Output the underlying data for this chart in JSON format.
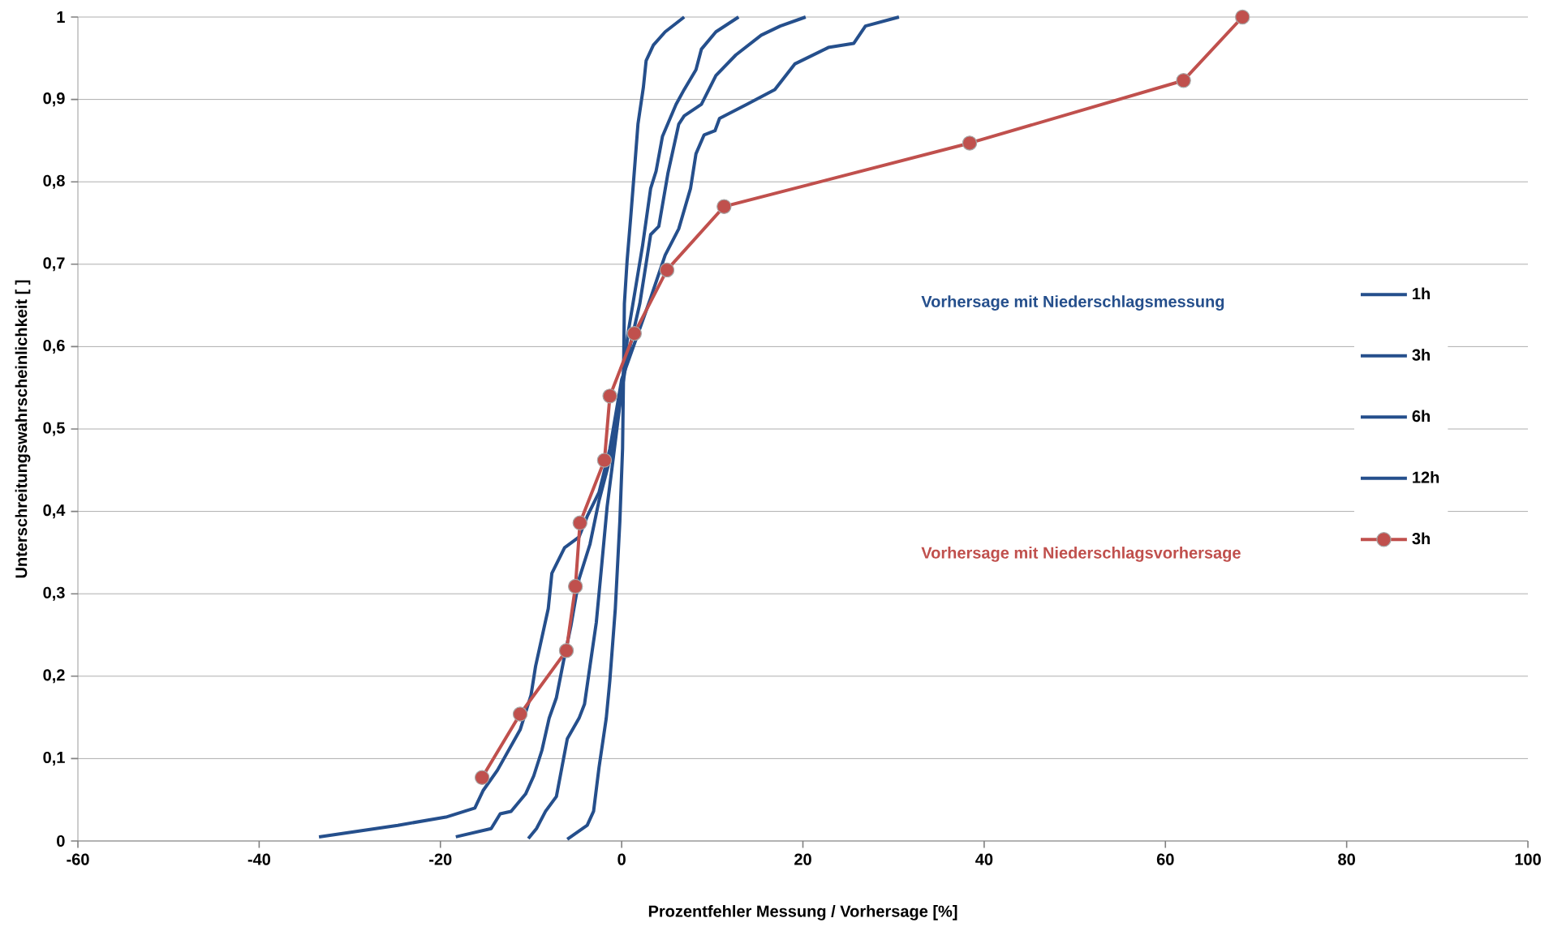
{
  "chart_data": {
    "type": "line",
    "xlabel": "Prozentfehler Messung / Vorhersage [%]",
    "ylabel": "Unterschreitungswahrscheinlichkeit [ ]",
    "annotations": [
      "Vorhersage mit Niederschlagsmessung",
      "Vorhersage mit Niederschlagsvorhersage"
    ],
    "xlim": [
      -60,
      100
    ],
    "xticks": [
      -60,
      -40,
      -20,
      0,
      20,
      40,
      60,
      80,
      100
    ],
    "ylim": [
      0,
      1
    ],
    "yticks": [
      0,
      {
        "value": 0.1,
        "label": "0,1"
      },
      {
        "value": 0.2,
        "label": "0,2"
      },
      {
        "value": 0.3,
        "label": "0,3"
      },
      {
        "value": 0.4,
        "label": "0,4"
      },
      {
        "value": 0.5,
        "label": "0,5"
      },
      {
        "value": 0.6,
        "label": "0,6"
      },
      {
        "value": 0.7,
        "label": "0,7"
      },
      {
        "value": 0.8,
        "label": "0,8"
      },
      {
        "value": 0.9,
        "label": "0,9"
      },
      1
    ],
    "grid": "y",
    "legend": "right",
    "series": [
      {
        "name": "1h",
        "color": "#254f8c",
        "marker": "none",
        "x": [
          -6.0,
          -3.8,
          -3.1,
          -2.5,
          -1.7,
          -1.3,
          -0.7,
          -0.2,
          0.1,
          0.2,
          0.3,
          0.6,
          1.0,
          1.5,
          1.8,
          2.4,
          2.7,
          3.5,
          4.8,
          6.9
        ],
        "values": [
          0.002,
          0.019,
          0.036,
          0.089,
          0.149,
          0.195,
          0.282,
          0.388,
          0.476,
          0.56,
          0.652,
          0.704,
          0.757,
          0.827,
          0.87,
          0.915,
          0.947,
          0.966,
          0.982,
          1.0
        ]
      },
      {
        "name": "3h",
        "color": "#254f8c",
        "marker": "none",
        "x": [
          -10.3,
          -9.4,
          -8.4,
          -7.2,
          -6.6,
          -6.0,
          -4.7,
          -4.1,
          -3.5,
          -2.8,
          -2.2,
          -1.6,
          -0.8,
          -0.2,
          0.7,
          1.5,
          2.3,
          3.2,
          3.8,
          4.5,
          6.0,
          6.9,
          8.2,
          8.8,
          10.4,
          12.9
        ],
        "values": [
          0.003,
          0.015,
          0.036,
          0.054,
          0.089,
          0.124,
          0.149,
          0.166,
          0.212,
          0.265,
          0.335,
          0.406,
          0.476,
          0.529,
          0.616,
          0.669,
          0.722,
          0.792,
          0.813,
          0.855,
          0.894,
          0.912,
          0.936,
          0.961,
          0.982,
          1.0
        ]
      },
      {
        "name": "6h",
        "color": "#254f8c",
        "marker": "none",
        "x": [
          -18.3,
          -14.4,
          -13.4,
          -12.2,
          -10.6,
          -9.7,
          -8.8,
          -8.0,
          -7.2,
          -6.4,
          -5.6,
          -4.7,
          -3.5,
          -2.5,
          -1.0,
          0.5,
          2.0,
          3.2,
          4.1,
          5.1,
          6.3,
          6.9,
          8.8,
          10.4,
          12.6,
          15.4,
          17.5,
          20.3
        ],
        "values": [
          0.005,
          0.015,
          0.033,
          0.036,
          0.057,
          0.079,
          0.11,
          0.149,
          0.174,
          0.219,
          0.261,
          0.318,
          0.36,
          0.413,
          0.476,
          0.58,
          0.652,
          0.736,
          0.746,
          0.81,
          0.87,
          0.88,
          0.894,
          0.929,
          0.954,
          0.978,
          0.989,
          1.0
        ]
      },
      {
        "name": "12h",
        "color": "#254f8c",
        "marker": "none",
        "x": [
          -33.4,
          -24.7,
          -19.4,
          -16.2,
          -15.3,
          -13.7,
          -11.2,
          -10.0,
          -9.5,
          -8.8,
          -8.1,
          -7.7,
          -6.3,
          -4.7,
          -3.8,
          -2.5,
          -1.3,
          0.0,
          3.2,
          4.8,
          6.3,
          7.6,
          8.2,
          9.1,
          10.3,
          10.8,
          13.8,
          16.9,
          19.1,
          22.8,
          25.6,
          26.9,
          30.6
        ],
        "values": [
          0.005,
          0.019,
          0.029,
          0.04,
          0.061,
          0.086,
          0.135,
          0.177,
          0.212,
          0.247,
          0.282,
          0.325,
          0.356,
          0.369,
          0.394,
          0.423,
          0.476,
          0.56,
          0.659,
          0.711,
          0.743,
          0.792,
          0.834,
          0.857,
          0.862,
          0.877,
          0.894,
          0.912,
          0.943,
          0.963,
          0.968,
          0.989,
          1.0
        ]
      },
      {
        "name": "3h",
        "color": "#c0504d",
        "marker": "circle",
        "x": [
          -15.4,
          -11.2,
          -6.1,
          -5.1,
          -4.6,
          -1.9,
          -1.3,
          1.4,
          5.0,
          11.3,
          38.4,
          62.0,
          68.5
        ],
        "values": [
          0.077,
          0.154,
          0.231,
          0.309,
          0.386,
          0.462,
          0.54,
          0.616,
          0.693,
          0.77,
          0.847,
          0.923,
          1.0
        ]
      }
    ]
  }
}
